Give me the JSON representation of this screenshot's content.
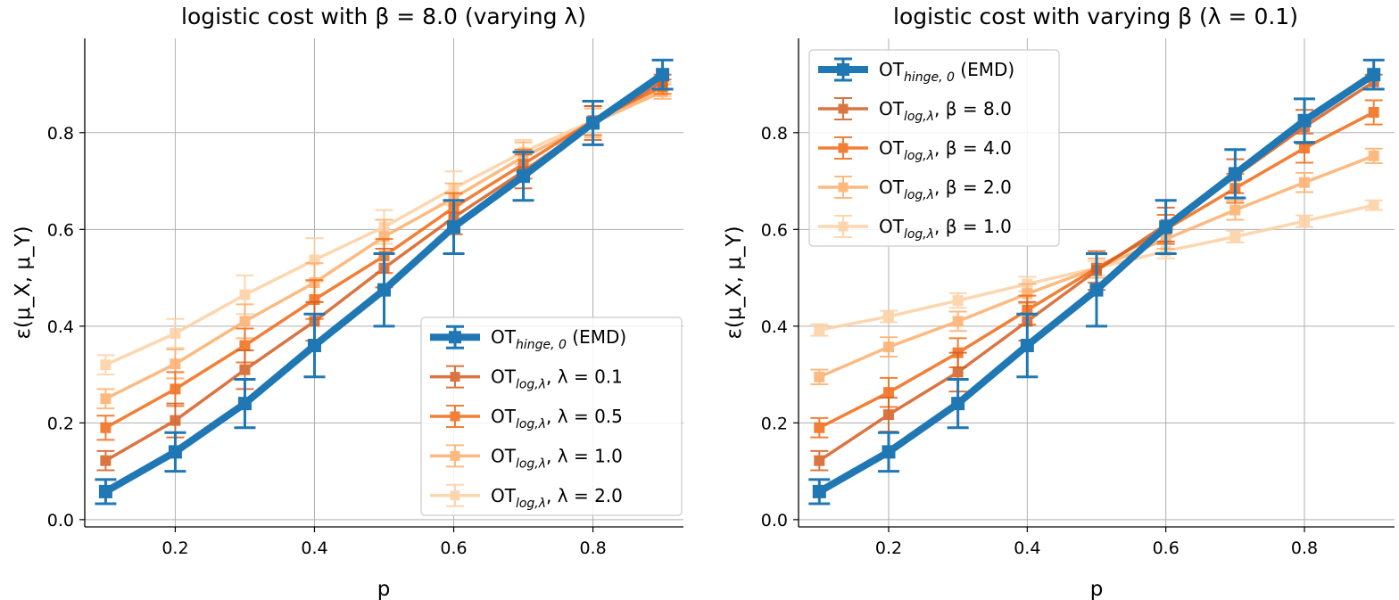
{
  "chart_data": [
    {
      "type": "line",
      "title": "logistic cost with β = 8.0 (varying λ)",
      "xlabel": "p",
      "ylabel": "ε(μ_X, μ_Y)",
      "x": [
        0.1,
        0.2,
        0.3,
        0.4,
        0.5,
        0.6,
        0.7,
        0.8,
        0.9
      ],
      "xlim": [
        0.07,
        0.93
      ],
      "ylim": [
        -0.015,
        0.995
      ],
      "xticks": [
        "0.2",
        "0.4",
        "0.6",
        "0.8"
      ],
      "yticks": [
        "0.0",
        "0.2",
        "0.4",
        "0.6",
        "0.8"
      ],
      "grid": true,
      "legend_position": "lower-right",
      "series": [
        {
          "name": "OT_{log,λ}, λ = 2.0",
          "label_main": "OT",
          "label_sub": "log,λ",
          "label_rest": ", λ = 2.0",
          "color": "#fdd0a2",
          "width": "thin",
          "values": [
            0.32,
            0.385,
            0.465,
            0.537,
            0.605,
            0.685,
            0.76,
            0.825,
            0.89
          ],
          "errors": [
            0.02,
            0.03,
            0.04,
            0.045,
            0.035,
            0.035,
            0.025,
            0.03,
            0.015
          ]
        },
        {
          "name": "OT_{log,λ}, λ = 1.0",
          "label_main": "OT",
          "label_sub": "log,λ",
          "label_rest": ", λ = 1.0",
          "color": "#fdae6b",
          "width": "thin",
          "values": [
            0.25,
            0.322,
            0.41,
            0.49,
            0.585,
            0.665,
            0.75,
            0.82,
            0.885
          ],
          "errors": [
            0.02,
            0.03,
            0.035,
            0.04,
            0.035,
            0.03,
            0.03,
            0.03,
            0.015
          ]
        },
        {
          "name": "OT_{log,λ}, λ = 0.5",
          "label_main": "OT",
          "label_sub": "log,λ",
          "label_rest": ", λ = 0.5",
          "color": "#f16913",
          "width": "thin",
          "values": [
            0.19,
            0.27,
            0.36,
            0.455,
            0.545,
            0.645,
            0.735,
            0.825,
            0.895
          ],
          "errors": [
            0.025,
            0.035,
            0.035,
            0.04,
            0.035,
            0.03,
            0.03,
            0.03,
            0.015
          ]
        },
        {
          "name": "OT_{log,λ}, λ = 0.1",
          "label_main": "OT",
          "label_sub": "log,λ",
          "label_rest": ", λ = 0.1",
          "color": "#d45d20",
          "width": "thin",
          "values": [
            0.122,
            0.205,
            0.31,
            0.41,
            0.52,
            0.625,
            0.72,
            0.82,
            0.905
          ],
          "errors": [
            0.02,
            0.035,
            0.04,
            0.04,
            0.04,
            0.035,
            0.035,
            0.035,
            0.015
          ]
        },
        {
          "name": "OT_{hinge,0} (EMD)",
          "label_main": "OT",
          "label_sub": "hinge, 0",
          "label_rest": " (EMD)",
          "color": "#1f77b4",
          "width": "thick",
          "values": [
            0.058,
            0.14,
            0.24,
            0.36,
            0.475,
            0.605,
            0.71,
            0.82,
            0.92
          ],
          "errors": [
            0.025,
            0.04,
            0.05,
            0.065,
            0.075,
            0.055,
            0.05,
            0.045,
            0.03
          ]
        }
      ]
    },
    {
      "type": "line",
      "title": "logistic cost with varying β (λ = 0.1)",
      "xlabel": "p",
      "ylabel": "ε(μ_X, μ_Y)",
      "x": [
        0.1,
        0.2,
        0.3,
        0.4,
        0.5,
        0.6,
        0.7,
        0.8,
        0.9
      ],
      "xlim": [
        0.07,
        0.93
      ],
      "ylim": [
        -0.015,
        0.995
      ],
      "xticks": [
        "0.2",
        "0.4",
        "0.6",
        "0.8"
      ],
      "yticks": [
        "0.0",
        "0.2",
        "0.4",
        "0.6",
        "0.8"
      ],
      "grid": true,
      "legend_position": "upper-left",
      "series": [
        {
          "name": "OT_{log,λ}, β = 1.0",
          "label_main": "OT",
          "label_sub": "log,λ",
          "label_rest": ", β = 1.0",
          "color": "#fdd0a2",
          "width": "thin",
          "values": [
            0.392,
            0.42,
            0.453,
            0.487,
            0.52,
            0.555,
            0.585,
            0.617,
            0.65
          ],
          "errors": [
            0.012,
            0.012,
            0.015,
            0.015,
            0.015,
            0.015,
            0.012,
            0.012,
            0.01
          ]
        },
        {
          "name": "OT_{log,λ}, β = 2.0",
          "label_main": "OT",
          "label_sub": "log,λ",
          "label_rest": ", β = 2.0",
          "color": "#fdae6b",
          "width": "thin",
          "values": [
            0.295,
            0.357,
            0.41,
            0.467,
            0.52,
            0.58,
            0.64,
            0.697,
            0.752
          ],
          "errors": [
            0.015,
            0.02,
            0.02,
            0.02,
            0.02,
            0.02,
            0.02,
            0.02,
            0.015
          ]
        },
        {
          "name": "OT_{log,λ}, β = 4.0",
          "label_main": "OT",
          "label_sub": "log,λ",
          "label_rest": ", β = 4.0",
          "color": "#f16913",
          "width": "thin",
          "values": [
            0.19,
            0.263,
            0.345,
            0.433,
            0.52,
            0.6,
            0.685,
            0.768,
            0.842
          ],
          "errors": [
            0.02,
            0.03,
            0.03,
            0.03,
            0.03,
            0.03,
            0.03,
            0.03,
            0.025
          ]
        },
        {
          "name": "OT_{log,λ}, β = 8.0",
          "label_main": "OT",
          "label_sub": "log,λ",
          "label_rest": ", β = 8.0",
          "color": "#d45d20",
          "width": "thin",
          "values": [
            0.122,
            0.217,
            0.305,
            0.41,
            0.515,
            0.61,
            0.71,
            0.812,
            0.905
          ],
          "errors": [
            0.02,
            0.035,
            0.04,
            0.04,
            0.04,
            0.035,
            0.035,
            0.035,
            0.015
          ]
        },
        {
          "name": "OT_{hinge,0} (EMD)",
          "label_main": "OT",
          "label_sub": "hinge, 0",
          "label_rest": " (EMD)",
          "color": "#1f77b4",
          "width": "thick",
          "values": [
            0.058,
            0.14,
            0.24,
            0.36,
            0.475,
            0.605,
            0.715,
            0.825,
            0.92
          ],
          "errors": [
            0.025,
            0.04,
            0.05,
            0.065,
            0.075,
            0.055,
            0.05,
            0.045,
            0.03
          ]
        }
      ]
    }
  ]
}
